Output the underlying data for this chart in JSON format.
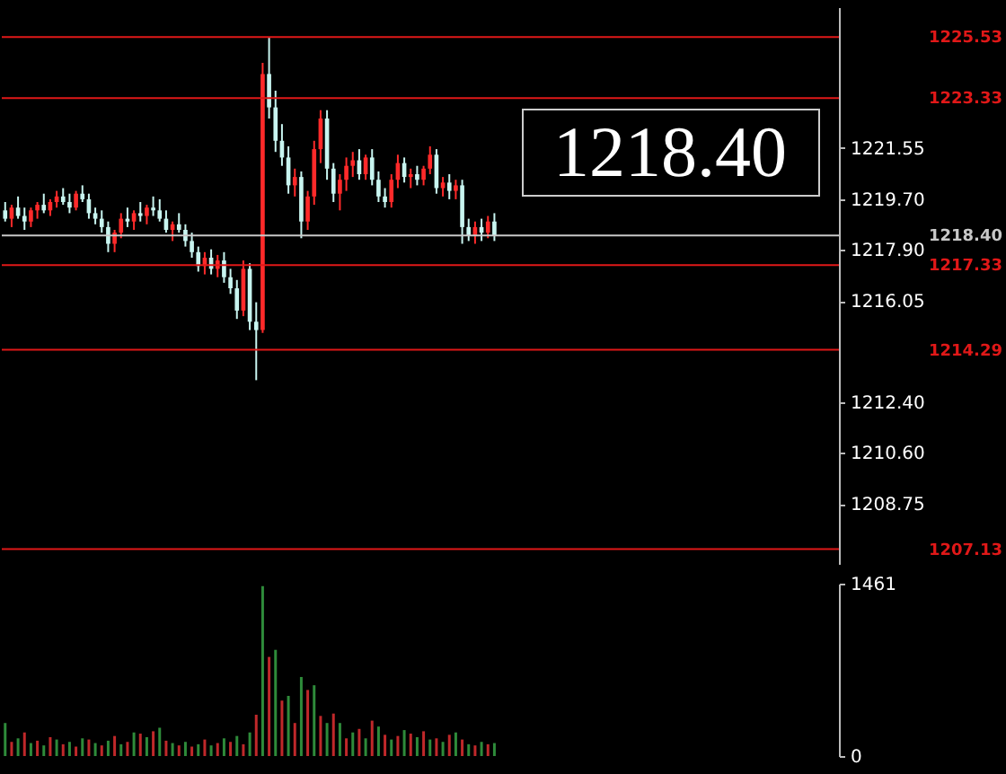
{
  "chart_data": [
    {
      "type": "candlestick",
      "categories": [
        null,
        null,
        null,
        null,
        null,
        null,
        null,
        null,
        null,
        null,
        null,
        null,
        null,
        null,
        null,
        null,
        null,
        null,
        null,
        null,
        null,
        null,
        null,
        null,
        null,
        null,
        null,
        null,
        null,
        null,
        null,
        null,
        null,
        null,
        null,
        null,
        null,
        null,
        null,
        null,
        null,
        null,
        null,
        null,
        null,
        null,
        null,
        null,
        null,
        null,
        null,
        null,
        null,
        null,
        null,
        null,
        null,
        null,
        null,
        null,
        null,
        null,
        null,
        null,
        null,
        null,
        null,
        null,
        null,
        null,
        null,
        null,
        null,
        null,
        null,
        null,
        null,
        null,
        null,
        null,
        null,
        null,
        null,
        null,
        null,
        null,
        null,
        null,
        null,
        null,
        null,
        null,
        null,
        null,
        null,
        null,
        null,
        null,
        null,
        null,
        null,
        null,
        null,
        null,
        null,
        null,
        null,
        null,
        null,
        null,
        null,
        null,
        null,
        null,
        null,
        null,
        null,
        null,
        null,
        null,
        null,
        null,
        null,
        null,
        null,
        null,
        null,
        null,
        null,
        null
      ],
      "ohlc": [
        [
          1219.3,
          1219.6,
          1218.9,
          1219.0
        ],
        [
          1219.0,
          1219.5,
          1218.7,
          1219.4
        ],
        [
          1219.4,
          1219.8,
          1219.0,
          1219.1
        ],
        [
          1219.1,
          1219.4,
          1218.6,
          1218.9
        ],
        [
          1218.9,
          1219.4,
          1218.7,
          1219.3
        ],
        [
          1219.3,
          1219.6,
          1219.0,
          1219.5
        ],
        [
          1219.5,
          1219.9,
          1219.2,
          1219.3
        ],
        [
          1219.3,
          1219.7,
          1219.1,
          1219.6
        ],
        [
          1219.6,
          1220.0,
          1219.4,
          1219.8
        ],
        [
          1219.8,
          1220.1,
          1219.5,
          1219.6
        ],
        [
          1219.6,
          1219.9,
          1219.2,
          1219.4
        ],
        [
          1219.4,
          1220.0,
          1219.3,
          1219.9
        ],
        [
          1219.9,
          1220.2,
          1219.6,
          1219.7
        ],
        [
          1219.7,
          1219.9,
          1219.0,
          1219.2
        ],
        [
          1219.2,
          1219.4,
          1218.8,
          1219.0
        ],
        [
          1219.0,
          1219.3,
          1218.5,
          1218.7
        ],
        [
          1218.7,
          1218.9,
          1217.8,
          1218.1
        ],
        [
          1218.1,
          1218.6,
          1217.8,
          1218.5
        ],
        [
          1218.5,
          1219.2,
          1218.3,
          1219.0
        ],
        [
          1219.0,
          1219.4,
          1218.7,
          1218.9
        ],
        [
          1218.9,
          1219.3,
          1218.6,
          1219.2
        ],
        [
          1219.2,
          1219.6,
          1218.9,
          1219.1
        ],
        [
          1219.1,
          1219.5,
          1218.8,
          1219.4
        ],
        [
          1219.4,
          1219.8,
          1219.1,
          1219.3
        ],
        [
          1219.3,
          1219.7,
          1218.9,
          1219.0
        ],
        [
          1219.0,
          1219.3,
          1218.5,
          1218.6
        ],
        [
          1218.6,
          1218.9,
          1218.2,
          1218.8
        ],
        [
          1218.8,
          1219.2,
          1218.5,
          1218.6
        ],
        [
          1218.6,
          1218.8,
          1218.0,
          1218.2
        ],
        [
          1218.2,
          1218.5,
          1217.6,
          1217.8
        ],
        [
          1217.8,
          1218.0,
          1217.1,
          1217.3
        ],
        [
          1217.3,
          1217.8,
          1217.0,
          1217.6
        ],
        [
          1217.6,
          1217.9,
          1217.0,
          1217.2
        ],
        [
          1217.2,
          1217.7,
          1216.9,
          1217.5
        ],
        [
          1217.5,
          1217.8,
          1216.7,
          1216.9
        ],
        [
          1216.9,
          1217.2,
          1216.3,
          1216.5
        ],
        [
          1216.5,
          1216.8,
          1215.4,
          1215.7
        ],
        [
          1215.7,
          1217.5,
          1215.5,
          1217.2
        ],
        [
          1217.2,
          1217.4,
          1215.0,
          1215.3
        ],
        [
          1215.3,
          1216.0,
          1213.2,
          1215.0
        ],
        [
          1215.0,
          1224.6,
          1214.9,
          1224.2
        ],
        [
          1224.2,
          1225.5,
          1222.6,
          1223.0
        ],
        [
          1223.0,
          1223.6,
          1221.4,
          1221.8
        ],
        [
          1221.8,
          1222.4,
          1220.9,
          1221.2
        ],
        [
          1221.2,
          1221.6,
          1219.9,
          1220.2
        ],
        [
          1220.2,
          1220.8,
          1219.8,
          1220.5
        ],
        [
          1220.5,
          1220.7,
          1218.3,
          1218.9
        ],
        [
          1218.9,
          1220.0,
          1218.6,
          1219.8
        ],
        [
          1219.8,
          1221.8,
          1219.5,
          1221.5
        ],
        [
          1221.5,
          1222.9,
          1221.0,
          1222.6
        ],
        [
          1222.6,
          1222.9,
          1220.4,
          1220.8
        ],
        [
          1220.8,
          1221.0,
          1219.6,
          1219.9
        ],
        [
          1219.9,
          1220.6,
          1219.3,
          1220.4
        ],
        [
          1220.4,
          1221.2,
          1220.0,
          1220.9
        ],
        [
          1220.9,
          1221.4,
          1220.5,
          1221.1
        ],
        [
          1221.1,
          1221.5,
          1220.4,
          1220.6
        ],
        [
          1220.6,
          1221.3,
          1220.4,
          1221.2
        ],
        [
          1221.2,
          1221.5,
          1220.2,
          1220.4
        ],
        [
          1220.4,
          1220.7,
          1219.6,
          1219.8
        ],
        [
          1219.8,
          1220.1,
          1219.4,
          1219.6
        ],
        [
          1219.6,
          1220.6,
          1219.4,
          1220.4
        ],
        [
          1220.4,
          1221.3,
          1220.1,
          1221.0
        ],
        [
          1221.0,
          1221.2,
          1220.3,
          1220.5
        ],
        [
          1220.5,
          1220.8,
          1220.1,
          1220.6
        ],
        [
          1220.6,
          1220.9,
          1220.2,
          1220.4
        ],
        [
          1220.4,
          1220.9,
          1220.2,
          1220.8
        ],
        [
          1220.8,
          1221.6,
          1220.6,
          1221.3
        ],
        [
          1221.3,
          1221.5,
          1219.9,
          1220.1
        ],
        [
          1220.1,
          1220.5,
          1219.8,
          1220.3
        ],
        [
          1220.3,
          1220.6,
          1219.7,
          1220.0
        ],
        [
          1220.0,
          1220.4,
          1219.7,
          1220.2
        ],
        [
          1220.2,
          1220.4,
          1218.1,
          1218.7
        ],
        [
          1218.7,
          1219.0,
          1218.2,
          1218.4
        ],
        [
          1218.4,
          1218.9,
          1218.1,
          1218.7
        ],
        [
          1218.7,
          1219.0,
          1218.2,
          1218.5
        ],
        [
          1218.5,
          1219.1,
          1218.3,
          1218.9
        ],
        [
          1218.9,
          1219.2,
          1218.2,
          1218.4
        ],
        null,
        null,
        null,
        null,
        null,
        null,
        null,
        null,
        null,
        null,
        null,
        null,
        null,
        null,
        null,
        null,
        null,
        null,
        null,
        null,
        null,
        null,
        null,
        null,
        null,
        null,
        null,
        null,
        null,
        null,
        null,
        null,
        null,
        null,
        null,
        null,
        null,
        null,
        null,
        null,
        null,
        null,
        null,
        null,
        null,
        null,
        null,
        null,
        null,
        null,
        null,
        null,
        null
      ],
      "colors": [
        "#c8f5f0",
        "#ff2a2a",
        "#c8f5f0",
        "#c8f5f0",
        "#ff2a2a",
        "#ff2a2a",
        "#c8f5f0",
        "#ff2a2a",
        "#ff2a2a",
        "#c8f5f0",
        "#c8f5f0",
        "#ff2a2a",
        "#c8f5f0",
        "#c8f5f0",
        "#c8f5f0",
        "#c8f5f0",
        "#c8f5f0",
        "#ff2a2a",
        "#ff2a2a",
        "#c8f5f0",
        "#ff2a2a",
        "#c8f5f0",
        "#ff2a2a",
        "#c8f5f0",
        "#c8f5f0",
        "#c8f5f0",
        "#ff2a2a",
        "#c8f5f0",
        "#c8f5f0",
        "#c8f5f0",
        "#c8f5f0",
        "#ff2a2a",
        "#c8f5f0",
        "#ff2a2a",
        "#c8f5f0",
        "#c8f5f0",
        "#c8f5f0",
        "#ff2a2a",
        "#c8f5f0",
        "#c8f5f0",
        "#ff2a2a",
        "#c8f5f0",
        "#c8f5f0",
        "#c8f5f0",
        "#c8f5f0",
        "#ff2a2a",
        "#c8f5f0",
        "#ff2a2a",
        "#ff2a2a",
        "#ff2a2a",
        "#c8f5f0",
        "#c8f5f0",
        "#ff2a2a",
        "#ff2a2a",
        "#ff2a2a",
        "#c8f5f0",
        "#ff2a2a",
        "#c8f5f0",
        "#c8f5f0",
        "#c8f5f0",
        "#ff2a2a",
        "#ff2a2a",
        "#c8f5f0",
        "#ff2a2a",
        "#c8f5f0",
        "#ff2a2a",
        "#ff2a2a",
        "#c8f5f0",
        "#ff2a2a",
        "#c8f5f0",
        "#ff2a2a",
        "#c8f5f0",
        "#c8f5f0",
        "#ff2a2a",
        "#c8f5f0",
        "#ff2a2a",
        "#c8f5f0",
        null,
        null,
        null,
        null,
        null,
        null,
        null,
        null,
        null,
        null,
        null,
        null,
        null,
        null,
        null,
        null,
        null,
        null,
        null,
        null,
        null,
        null,
        null,
        null,
        null,
        null,
        null,
        null,
        null,
        null,
        null,
        null,
        null,
        null,
        null,
        null,
        null,
        null,
        null,
        null,
        null,
        null,
        null,
        null,
        null,
        null,
        null,
        null,
        null,
        null,
        null,
        null,
        null
      ],
      "ylim": [
        1206.6,
        1226.6
      ],
      "yticks": [
        {
          "value": 1208.75,
          "label": "1208.75"
        },
        {
          "value": 1210.6,
          "label": "1210.60"
        },
        {
          "value": 1212.4,
          "label": "1212.40"
        },
        {
          "value": 1216.05,
          "label": "1216.05"
        },
        {
          "value": 1217.9,
          "label": "1217.90"
        },
        {
          "value": 1219.7,
          "label": "1219.70"
        },
        {
          "value": 1221.55,
          "label": "1221.55"
        }
      ],
      "tick_labels": "y",
      "ref_lines": [
        {
          "axis": "y",
          "value": 1225.53,
          "label": "1225.53",
          "color": "#e01818"
        },
        {
          "axis": "y",
          "value": 1223.33,
          "label": "1223.33",
          "color": "#e01818"
        },
        {
          "axis": "y",
          "value": 1217.33,
          "label": "1217.33",
          "color": "#e01818"
        },
        {
          "axis": "y",
          "value": 1214.29,
          "label": "1214.29",
          "color": "#e01818"
        },
        {
          "axis": "y",
          "value": 1207.13,
          "label": "1207.13",
          "color": "#e01818"
        },
        {
          "axis": "y",
          "value": 1218.4,
          "label": "1218.40",
          "color": "#c8c8c8"
        }
      ],
      "annotations": [
        "1218.40"
      ]
    },
    {
      "type": "bar",
      "categories": [
        null,
        null,
        null,
        null,
        null,
        null,
        null,
        null,
        null,
        null,
        null,
        null,
        null,
        null,
        null,
        null,
        null,
        null,
        null,
        null,
        null,
        null,
        null,
        null,
        null,
        null,
        null,
        null,
        null,
        null,
        null,
        null,
        null,
        null,
        null,
        null,
        null,
        null,
        null,
        null,
        null,
        null,
        null,
        null,
        null,
        null,
        null,
        null,
        null,
        null,
        null,
        null,
        null,
        null,
        null,
        null,
        null,
        null,
        null,
        null,
        null,
        null,
        null,
        null,
        null,
        null,
        null,
        null,
        null,
        null,
        null,
        null,
        null,
        null,
        null,
        null,
        null,
        null,
        null,
        null,
        null,
        null,
        null,
        null,
        null,
        null,
        null,
        null,
        null,
        null,
        null,
        null,
        null,
        null,
        null,
        null,
        null,
        null,
        null,
        null,
        null,
        null,
        null,
        null,
        null,
        null,
        null,
        null,
        null,
        null,
        null,
        null,
        null,
        null,
        null,
        null,
        null,
        null,
        null,
        null,
        null,
        null,
        null,
        null,
        null,
        null,
        null,
        null,
        null,
        null
      ],
      "values": [
        280,
        120,
        150,
        200,
        110,
        130,
        90,
        160,
        140,
        100,
        120,
        80,
        150,
        140,
        110,
        90,
        130,
        170,
        100,
        120,
        200,
        190,
        160,
        210,
        240,
        130,
        110,
        90,
        120,
        80,
        100,
        140,
        90,
        110,
        150,
        120,
        170,
        100,
        200,
        350,
        1440,
        840,
        900,
        470,
        510,
        280,
        670,
        560,
        600,
        340,
        280,
        360,
        280,
        150,
        200,
        230,
        150,
        300,
        250,
        180,
        140,
        170,
        220,
        190,
        160,
        210,
        140,
        150,
        120,
        180,
        200,
        140,
        100,
        90,
        120,
        100,
        110,
        null,
        null,
        null,
        null,
        null,
        null,
        null,
        null,
        null,
        null,
        null,
        null,
        null,
        null,
        null,
        null,
        null,
        null,
        null,
        null,
        null,
        null,
        null,
        null,
        null,
        null,
        null,
        null,
        null,
        null,
        null,
        null,
        null,
        null,
        null,
        null,
        null,
        null,
        null,
        null,
        null,
        null,
        null,
        null,
        null,
        null,
        null,
        null,
        null,
        null,
        null,
        null,
        null
      ],
      "colors": [
        "#2e8b3a",
        "#c0282a",
        "#2e8b3a",
        "#c0282a",
        "#2e8b3a",
        "#c0282a",
        "#2e8b3a",
        "#c0282a",
        "#2e8b3a",
        "#c0282a",
        "#2e8b3a",
        "#c0282a",
        "#2e8b3a",
        "#c0282a",
        "#2e8b3a",
        "#c0282a",
        "#2e8b3a",
        "#c0282a",
        "#2e8b3a",
        "#c0282a",
        "#2e8b3a",
        "#c0282a",
        "#2e8b3a",
        "#c0282a",
        "#2e8b3a",
        "#c0282a",
        "#2e8b3a",
        "#c0282a",
        "#2e8b3a",
        "#c0282a",
        "#2e8b3a",
        "#c0282a",
        "#2e8b3a",
        "#c0282a",
        "#2e8b3a",
        "#c0282a",
        "#2e8b3a",
        "#c0282a",
        "#2e8b3a",
        "#c0282a",
        "#2e8b3a",
        "#c0282a",
        "#2e8b3a",
        "#c0282a",
        "#2e8b3a",
        "#c0282a",
        "#2e8b3a",
        "#c0282a",
        "#2e8b3a",
        "#c0282a",
        "#2e8b3a",
        "#c0282a",
        "#2e8b3a",
        "#c0282a",
        "#2e8b3a",
        "#c0282a",
        "#2e8b3a",
        "#c0282a",
        "#2e8b3a",
        "#c0282a",
        "#2e8b3a",
        "#c0282a",
        "#2e8b3a",
        "#c0282a",
        "#2e8b3a",
        "#c0282a",
        "#2e8b3a",
        "#c0282a",
        "#2e8b3a",
        "#c0282a",
        "#2e8b3a",
        "#c0282a",
        "#2e8b3a",
        "#c0282a",
        "#2e8b3a",
        "#c0282a",
        "#2e8b3a",
        null,
        null,
        null,
        null,
        null,
        null,
        null,
        null,
        null,
        null,
        null,
        null,
        null,
        null,
        null,
        null,
        null,
        null,
        null,
        null,
        null,
        null,
        null,
        null,
        null,
        null,
        null,
        null,
        null,
        null,
        null,
        null,
        null,
        null,
        null,
        null,
        null,
        null,
        null,
        null,
        null,
        null,
        null,
        null,
        null,
        null,
        null,
        null,
        null,
        null,
        null,
        null,
        null
      ],
      "ylim": [
        0,
        1461
      ],
      "yticks": [
        0,
        1461
      ],
      "tick_labels": "y"
    }
  ]
}
